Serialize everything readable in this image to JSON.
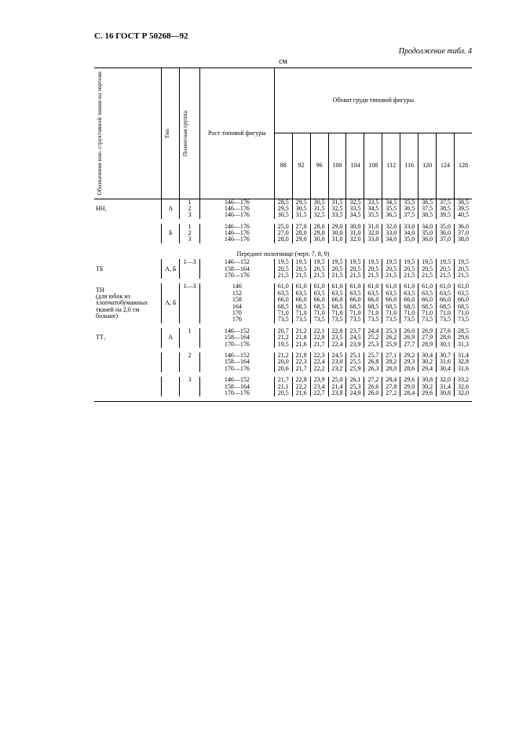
{
  "header": "С. 16 ГОСТ Р 50268—92",
  "continuation": "Продолжение табл. 4",
  "unit": "см",
  "colhead": {
    "c1": "Обозначение кон-\nструктивной линии\nна чертеже",
    "c2": "Тип",
    "c3": "Полнотная\nгруппа",
    "c4": "Рост\nтиповой\nфигуры",
    "span": "Обхват груди типовой фигуры",
    "sizes": [
      "88",
      "92",
      "96",
      "100",
      "104",
      "108",
      "112",
      "116",
      "120",
      "124",
      "128"
    ]
  },
  "section": "Переднее полотнище (черт. 7, 8, 9)",
  "blocks": [
    {
      "label": "НН₁",
      "type": "А",
      "rows": [
        {
          "g": "1",
          "h": "146—176",
          "v": [
            "28,5",
            "29,5",
            "30,5",
            "31,5",
            "32,5",
            "33,5",
            "34,5",
            "35,5",
            "36,5",
            "37,5",
            "38,5"
          ]
        },
        {
          "g": "2",
          "h": "146—176",
          "v": [
            "29,5",
            "30,5",
            "31,5",
            "32,5",
            "33,5",
            "34,5",
            "35,5",
            "36,5",
            "37,5",
            "38,5",
            "39,5"
          ]
        },
        {
          "g": "3",
          "h": "146—176",
          "v": [
            "30,5",
            "31,5",
            "32,5",
            "33,5",
            "34,5",
            "35,5",
            "36,5",
            "37,5",
            "38,5",
            "39,5",
            "40,5"
          ]
        }
      ]
    },
    {
      "label": "",
      "type": "Б",
      "rows": [
        {
          "g": "1",
          "h": "146—176",
          "v": [
            "25,0",
            "27,0",
            "28,0",
            "29,0",
            "30,0",
            "31,0",
            "32,0",
            "33,0",
            "34,0",
            "35,0",
            "36,0"
          ]
        },
        {
          "g": "2",
          "h": "146—176",
          "v": [
            "27,0",
            "28,0",
            "29,0",
            "30,0",
            "31,0",
            "32,0",
            "33,0",
            "34,0",
            "35,0",
            "36,0",
            "37,0"
          ]
        },
        {
          "g": "3",
          "h": "146—176",
          "v": [
            "28,0",
            "29,0",
            "30,0",
            "31,0",
            "32,0",
            "33,0",
            "34,0",
            "35,0",
            "36,0",
            "37,0",
            "38,0"
          ]
        }
      ]
    },
    {
      "label": "ТБ",
      "type": "А, Б",
      "rows": [
        {
          "g": "1—3",
          "h": "146—152",
          "v": [
            "19,5",
            "19,5",
            "19,5",
            "19,5",
            "19,5",
            "19,5",
            "19,5",
            "19,5",
            "19,5",
            "19,5",
            "19,5"
          ]
        },
        {
          "g": "",
          "h": "158—164",
          "v": [
            "20,5",
            "20,5",
            "20,5",
            "20,5",
            "20,5",
            "20,5",
            "20,5",
            "20,5",
            "20,5",
            "20,5",
            "20,5"
          ]
        },
        {
          "g": "",
          "h": "170—176",
          "v": [
            "21,5",
            "21,5",
            "21,5",
            "21,5",
            "21,5",
            "21,5",
            "21,5",
            "21,5",
            "21,5",
            "21,5",
            "21,5"
          ]
        }
      ]
    },
    {
      "label": "ТН\n(для юбок из\nхлопчатобумажных\nтканей на 2,0 см\nбольше)",
      "type": "А, Б",
      "rows": [
        {
          "g": "1—3",
          "h": "146",
          "v": [
            "61,0",
            "61,0",
            "61,0",
            "61,0",
            "61,0",
            "61,0",
            "61,0",
            "61,0",
            "61,0",
            "61,0",
            "61,0"
          ]
        },
        {
          "g": "",
          "h": "152",
          "v": [
            "63,5",
            "63,5",
            "63,5",
            "63,5",
            "63,5",
            "63,5",
            "63,5",
            "63,5",
            "63,5",
            "63,5",
            "63,5"
          ]
        },
        {
          "g": "",
          "h": "158",
          "v": [
            "66,0",
            "66,0",
            "66,0",
            "66,0",
            "66,0",
            "66,0",
            "66,0",
            "66,0",
            "66,0",
            "66,0",
            "66,0"
          ]
        },
        {
          "g": "",
          "h": "164",
          "v": [
            "68,5",
            "68,5",
            "68,5",
            "68,5",
            "68,5",
            "68,5",
            "68,5",
            "68,5",
            "68,5",
            "68,5",
            "68,5"
          ]
        },
        {
          "g": "",
          "h": "170",
          "v": [
            "71,0",
            "71,0",
            "71,0",
            "71,0",
            "71,0",
            "71,0",
            "71,0",
            "71,0",
            "71,0",
            "71,0",
            "71,0"
          ]
        },
        {
          "g": "",
          "h": "176",
          "v": [
            "73,5",
            "73,5",
            "73,5",
            "73,5",
            "73,5",
            "73,5",
            "73,5",
            "73,5",
            "73,5",
            "73,5",
            "73,5"
          ]
        }
      ]
    },
    {
      "label": "ТТ₁",
      "type": "А",
      "rows": [
        {
          "g": "1",
          "h": "146—152",
          "v": [
            "20,7",
            "21,2",
            "22,1",
            "22,8",
            "23,7",
            "24,4",
            "25,3",
            "26,0",
            "26,9",
            "27,6",
            "28,5"
          ]
        },
        {
          "g": "",
          "h": "158—164",
          "v": [
            "21,2",
            "21,8",
            "22,8",
            "23,5",
            "24,5",
            "25,2",
            "26,2",
            "26,9",
            "27,9",
            "28,6",
            "29,6"
          ]
        },
        {
          "g": "",
          "h": "170—176",
          "v": [
            "19,5",
            "21,6",
            "21,7",
            "22,4",
            "23,9",
            "25,3",
            "25,9",
            "27,7",
            "28,9",
            "30,1",
            "31,3"
          ]
        }
      ]
    },
    {
      "label": "",
      "type": "",
      "rows": [
        {
          "g": "2",
          "h": "146—152",
          "v": [
            "21,2",
            "21,8",
            "22,3",
            "24,5",
            "25,1",
            "25,7",
            "27,1",
            "29,2",
            "30,4",
            "30,7",
            "31,4"
          ]
        },
        {
          "g": "",
          "h": "158—164",
          "v": [
            "20,0",
            "22,3",
            "22,4",
            "23,0",
            "25,5",
            "26,8",
            "28,2",
            "29,3",
            "30,2",
            "31,6",
            "32,8"
          ]
        },
        {
          "g": "",
          "h": "170—176",
          "v": [
            "20,6",
            "21,7",
            "22,2",
            "23,2",
            "25,9",
            "26,3",
            "28,0",
            "28,6",
            "29,4",
            "30,4",
            "31,6"
          ]
        }
      ]
    },
    {
      "label": "",
      "type": "",
      "rows": [
        {
          "g": "3",
          "h": "146—152",
          "v": [
            "21,7",
            "22,8",
            "23,9",
            "25,0",
            "26,1",
            "27,2",
            "28,4",
            "29,6",
            "30,8",
            "32,0",
            "33,2"
          ]
        },
        {
          "g": "",
          "h": "158—164",
          "v": [
            "21,1",
            "22,2",
            "23,4",
            "21,4",
            "25,3",
            "26,6",
            "27,8",
            "29,0",
            "30,2",
            "31,4",
            "32,6"
          ]
        },
        {
          "g": "",
          "h": "170—176",
          "v": [
            "20,5",
            "21,6",
            "22,7",
            "23,8",
            "24,9",
            "26,0",
            "27,2",
            "28,4",
            "29,6",
            "30,8",
            "32,0"
          ]
        }
      ]
    }
  ]
}
